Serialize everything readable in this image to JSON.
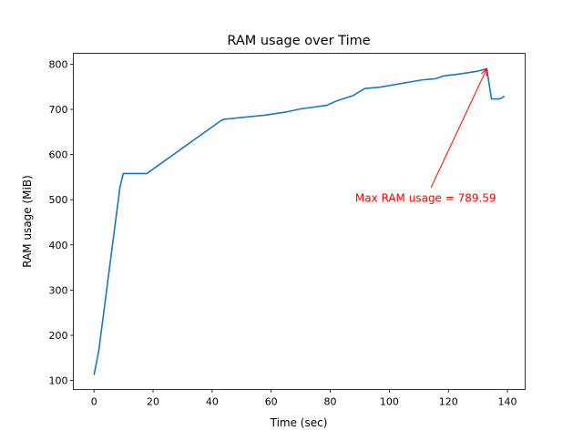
{
  "chart_data": {
    "type": "line",
    "title": "RAM usage over Time",
    "xlabel": "Time (sec)",
    "ylabel": "RAM usage (MiB)",
    "xlim": [
      -7,
      146
    ],
    "ylim": [
      80,
      824
    ],
    "xticks": [
      0,
      20,
      40,
      60,
      80,
      100,
      120,
      140
    ],
    "yticks": [
      100,
      200,
      300,
      400,
      500,
      600,
      700,
      800
    ],
    "grid": false,
    "series": [
      {
        "color": "#1f77b4",
        "x": [
          0,
          1.6,
          8.8,
          9.9,
          17.9,
          43,
          44,
          57.8,
          65,
          70,
          78.9,
          82.3,
          87.6,
          91.7,
          96.8,
          111,
          115.8,
          118.4,
          123.5,
          129.6,
          133,
          134.6,
          137.5,
          139
        ],
        "y": [
          112,
          165,
          528,
          558,
          558,
          675,
          678,
          687,
          694,
          701,
          709,
          719,
          730,
          746,
          749,
          765,
          768,
          774,
          778,
          784,
          789.59,
          723,
          723,
          729
        ]
      }
    ],
    "annotation": {
      "text": "Max RAM usage = 789.59",
      "color": "#ff0000",
      "point": [
        133,
        789.59
      ],
      "text_position": [
        112.3,
        495
      ]
    }
  }
}
